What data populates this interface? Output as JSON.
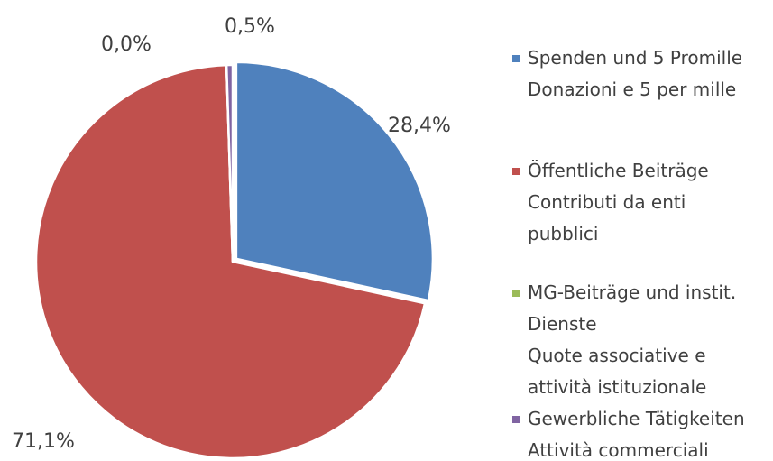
{
  "chart_data": {
    "type": "pie",
    "series": [
      {
        "name": "Spenden und 5 Promille\nDonazioni e 5 per mille",
        "color": "#4f81bd"
      },
      {
        "name": "Öffentliche Beiträge\nContributi da enti\npubblici",
        "color": "#c0504d"
      },
      {
        "name": "MG-Beiträge und instit.\nDienste\nQuote associative e\nattività istituzionale",
        "color": "#9bbb59"
      },
      {
        "name": "Gewerbliche Tätigkeiten\nAttività commerciali",
        "color": "#8064a2"
      }
    ],
    "values": [
      28.4,
      71.1,
      0.0,
      0.5
    ],
    "value_labels": [
      "28,4%",
      "71,1%",
      "0,0%",
      "0,5%"
    ]
  }
}
